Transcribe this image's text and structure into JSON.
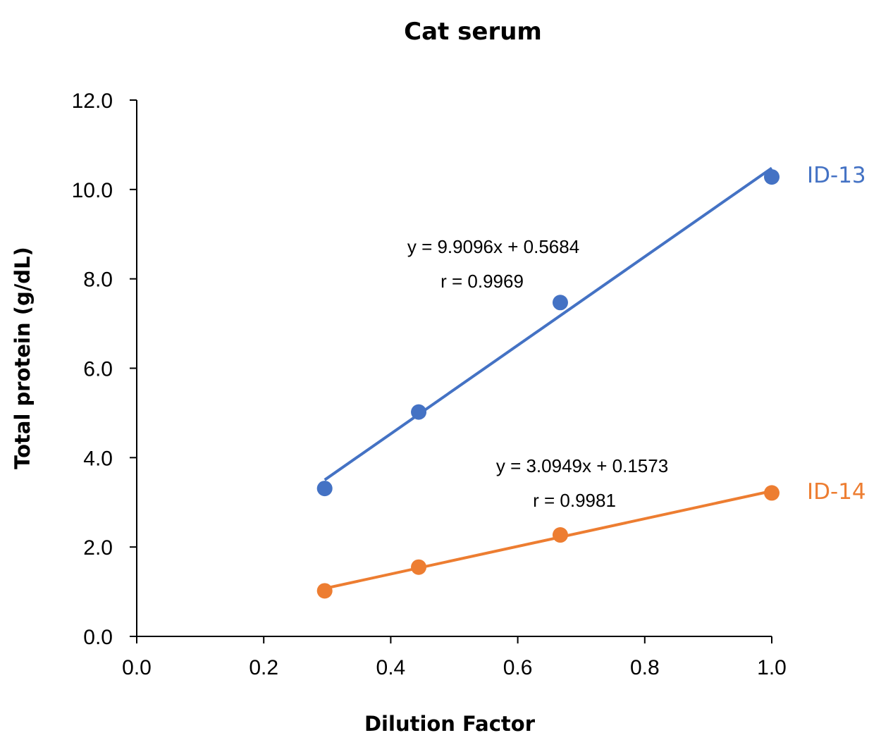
{
  "chart_data": {
    "type": "scatter",
    "title": "Cat serum",
    "xlabel": "Dilution Factor",
    "ylabel": "Total protein (g/dL)",
    "xlim": [
      0.0,
      1.0
    ],
    "ylim": [
      0.0,
      12.0
    ],
    "xticks": [
      "0.0",
      "0.2",
      "0.4",
      "0.6",
      "0.8",
      "1.0"
    ],
    "yticks": [
      "0.0",
      "2.0",
      "4.0",
      "6.0",
      "8.0",
      "10.0",
      "12.0"
    ],
    "grid": false,
    "series": [
      {
        "name": "ID-13",
        "color": "#4472C4",
        "x": [
          0.296,
          0.444,
          0.667,
          1.0
        ],
        "y": [
          3.31,
          5.02,
          7.47,
          10.28
        ],
        "trendline": {
          "slope": 9.9096,
          "intercept": 0.5684
        },
        "equation": "y = 9.9096x + 0.5684",
        "r_text": "r = 0.9969"
      },
      {
        "name": "ID-14",
        "color": "#ED7D31",
        "x": [
          0.296,
          0.444,
          0.667,
          1.0
        ],
        "y": [
          1.02,
          1.55,
          2.27,
          3.21
        ],
        "trendline": {
          "slope": 3.0949,
          "intercept": 0.1573
        },
        "equation": "y = 3.0949x + 0.1573",
        "r_text": "r = 0.9981"
      }
    ]
  }
}
